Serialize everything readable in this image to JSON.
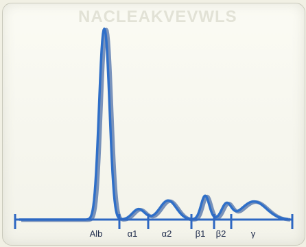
{
  "chart_data": {
    "type": "line",
    "title": "",
    "xlabel": "",
    "ylabel": "",
    "categories": [
      "Alb",
      "α1",
      "α2",
      "β1",
      "β2",
      "γ"
    ],
    "series": [
      {
        "values": [
          1.0,
          0.055,
          0.1,
          0.125,
          0.08,
          0.095
        ]
      }
    ],
    "grid": false,
    "colors": {
      "trace": "#2f6fc8",
      "trace_shadow": "#123f8f",
      "axis": "#2d67c2"
    }
  }
}
